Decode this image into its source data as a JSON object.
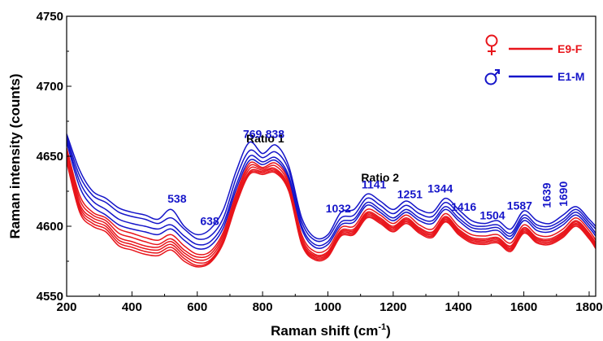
{
  "chart_data": {
    "type": "line",
    "xlabel": "Raman shift (cm",
    "xlabel_sup": "-1",
    "xlabel_end": ")",
    "ylabel": "Raman intensity (counts)",
    "xlim": [
      200,
      1820
    ],
    "ylim": [
      4550,
      4750
    ],
    "xticks": [
      "200",
      "400",
      "600",
      "800",
      "1000",
      "1200",
      "1400",
      "1600",
      "1800"
    ],
    "yticks": [
      "4550",
      "4600",
      "4650",
      "4700",
      "4750"
    ],
    "colors": {
      "female": "#e8151b",
      "male": "#1515c9"
    },
    "legend": [
      {
        "symbol": "female-symbol-icon",
        "label": "E9-F",
        "color": "#e8151b"
      },
      {
        "symbol": "male-symbol-icon",
        "label": "E1-M",
        "color": "#1515c9"
      }
    ],
    "group_labels": [
      {
        "text": "Ratio 1",
        "x": 808,
        "y": 4660
      },
      {
        "text": "Ratio 2",
        "x": 1160,
        "y": 4632
      }
    ],
    "peak_labels": [
      {
        "text": "538",
        "x": 538,
        "y": 4617
      },
      {
        "text": "638",
        "x": 638,
        "y": 4601
      },
      {
        "text": "769",
        "x": 769,
        "y": 4663
      },
      {
        "text": "838",
        "x": 838,
        "y": 4663
      },
      {
        "text": "1032",
        "x": 1032,
        "y": 4610
      },
      {
        "text": "1141",
        "x": 1141,
        "y": 4627
      },
      {
        "text": "1251",
        "x": 1251,
        "y": 4620
      },
      {
        "text": "1344",
        "x": 1344,
        "y": 4624
      },
      {
        "text": "1416",
        "x": 1416,
        "y": 4611
      },
      {
        "text": "1504",
        "x": 1504,
        "y": 4605
      },
      {
        "text": "1587",
        "x": 1587,
        "y": 4612
      },
      {
        "text": "1639",
        "x": 1669,
        "y": 4613,
        "rotate": true
      },
      {
        "text": "1690",
        "x": 1721,
        "y": 4614,
        "rotate": true
      }
    ],
    "x": [
      200,
      240,
      280,
      320,
      360,
      400,
      440,
      480,
      520,
      560,
      600,
      640,
      680,
      720,
      760,
      800,
      840,
      880,
      920,
      960,
      1000,
      1040,
      1080,
      1120,
      1160,
      1200,
      1240,
      1280,
      1320,
      1360,
      1400,
      1440,
      1480,
      1520,
      1560,
      1600,
      1640,
      1680,
      1720,
      1760,
      1800,
      1820
    ],
    "series": [
      {
        "group": "E1-M",
        "values": [
          4666,
          4640,
          4625,
          4620,
          4613,
          4610,
          4608,
          4605,
          4612,
          4600,
          4594,
          4598,
          4612,
          4640,
          4660,
          4652,
          4658,
          4643,
          4606,
          4592,
          4594,
          4610,
          4612,
          4623,
          4618,
          4612,
          4618,
          4612,
          4610,
          4620,
          4612,
          4604,
          4602,
          4604,
          4598,
          4611,
          4604,
          4602,
          4608,
          4614,
          4605,
          4600
        ]
      },
      {
        "group": "E1-M",
        "values": [
          4664,
          4636,
          4622,
          4617,
          4610,
          4607,
          4605,
          4602,
          4606,
          4598,
          4591,
          4593,
          4606,
          4635,
          4654,
          4649,
          4653,
          4640,
          4603,
          4590,
          4592,
          4606,
          4608,
          4620,
          4615,
          4609,
          4615,
          4609,
          4607,
          4617,
          4609,
          4601,
          4600,
          4601,
          4595,
          4608,
          4601,
          4600,
          4605,
          4612,
          4603,
          4598
        ]
      },
      {
        "group": "E1-M",
        "values": [
          4662,
          4632,
          4618,
          4612,
          4605,
          4602,
          4600,
          4598,
          4601,
          4593,
          4587,
          4589,
          4602,
          4630,
          4650,
          4646,
          4649,
          4636,
          4600,
          4587,
          4589,
          4603,
          4605,
          4617,
          4612,
          4606,
          4612,
          4606,
          4604,
          4614,
          4606,
          4599,
          4598,
          4599,
          4593,
          4606,
          4599,
          4598,
          4603,
          4610,
          4601,
          4595
        ]
      },
      {
        "group": "E1-M",
        "values": [
          4660,
          4628,
          4614,
          4608,
          4601,
          4598,
          4596,
          4594,
          4598,
          4590,
          4584,
          4586,
          4599,
          4627,
          4647,
          4644,
          4647,
          4634,
          4598,
          4585,
          4587,
          4601,
          4603,
          4615,
          4610,
          4604,
          4610,
          4604,
          4602,
          4612,
          4604,
          4597,
          4596,
          4597,
          4591,
          4604,
          4597,
          4596,
          4601,
          4608,
          4599,
          4593
        ]
      },
      {
        "group": "E9-F",
        "values": [
          4656,
          4622,
          4610,
          4606,
          4598,
          4595,
          4592,
          4590,
          4594,
          4586,
          4580,
          4582,
          4596,
          4624,
          4645,
          4642,
          4645,
          4632,
          4594,
          4582,
          4584,
          4599,
          4600,
          4612,
          4608,
          4602,
          4608,
          4601,
          4598,
          4609,
          4600,
          4594,
          4593,
          4594,
          4588,
          4601,
          4594,
          4593,
          4598,
          4606,
          4597,
          4590
        ]
      },
      {
        "group": "E9-F",
        "values": [
          4654,
          4619,
          4608,
          4604,
          4595,
          4592,
          4589,
          4587,
          4591,
          4583,
          4578,
          4580,
          4594,
          4622,
          4643,
          4641,
          4643,
          4630,
          4592,
          4580,
          4582,
          4597,
          4598,
          4610,
          4606,
          4600,
          4606,
          4599,
          4596,
          4607,
          4598,
          4592,
          4591,
          4592,
          4586,
          4599,
          4592,
          4591,
          4596,
          4604,
          4595,
          4588
        ]
      },
      {
        "group": "E9-F",
        "values": [
          4652,
          4616,
          4606,
          4602,
          4592,
          4589,
          4586,
          4585,
          4589,
          4581,
          4576,
          4578,
          4592,
          4620,
          4641,
          4640,
          4641,
          4628,
          4590,
          4579,
          4581,
          4596,
          4597,
          4609,
          4605,
          4599,
          4605,
          4598,
          4595,
          4606,
          4597,
          4591,
          4590,
          4591,
          4585,
          4598,
          4591,
          4590,
          4595,
          4603,
          4594,
          4587
        ]
      },
      {
        "group": "E9-F",
        "values": [
          4650,
          4614,
          4604,
          4600,
          4590,
          4587,
          4584,
          4583,
          4587,
          4579,
          4574,
          4576,
          4590,
          4618,
          4639,
          4639,
          4640,
          4627,
          4589,
          4578,
          4580,
          4595,
          4596,
          4608,
          4604,
          4598,
          4604,
          4597,
          4594,
          4605,
          4596,
          4590,
          4589,
          4590,
          4584,
          4597,
          4590,
          4589,
          4594,
          4602,
          4593,
          4586
        ]
      },
      {
        "group": "E9-F",
        "values": [
          4648,
          4612,
          4602,
          4598,
          4588,
          4585,
          4582,
          4581,
          4585,
          4577,
          4572,
          4575,
          4589,
          4617,
          4638,
          4638,
          4639,
          4626,
          4588,
          4577,
          4579,
          4594,
          4595,
          4607,
          4603,
          4597,
          4603,
          4596,
          4593,
          4604,
          4595,
          4589,
          4588,
          4589,
          4583,
          4596,
          4589,
          4588,
          4593,
          4601,
          4592,
          4585
        ]
      },
      {
        "group": "E9-F",
        "values": [
          4646,
          4610,
          4600,
          4596,
          4586,
          4583,
          4580,
          4579,
          4583,
          4575,
          4571,
          4574,
          4588,
          4616,
          4637,
          4637,
          4638,
          4625,
          4587,
          4576,
          4578,
          4593,
          4594,
          4606,
          4602,
          4596,
          4602,
          4595,
          4592,
          4603,
          4594,
          4588,
          4587,
          4588,
          4582,
          4595,
          4588,
          4587,
          4592,
          4600,
          4591,
          4584
        ]
      }
    ]
  }
}
